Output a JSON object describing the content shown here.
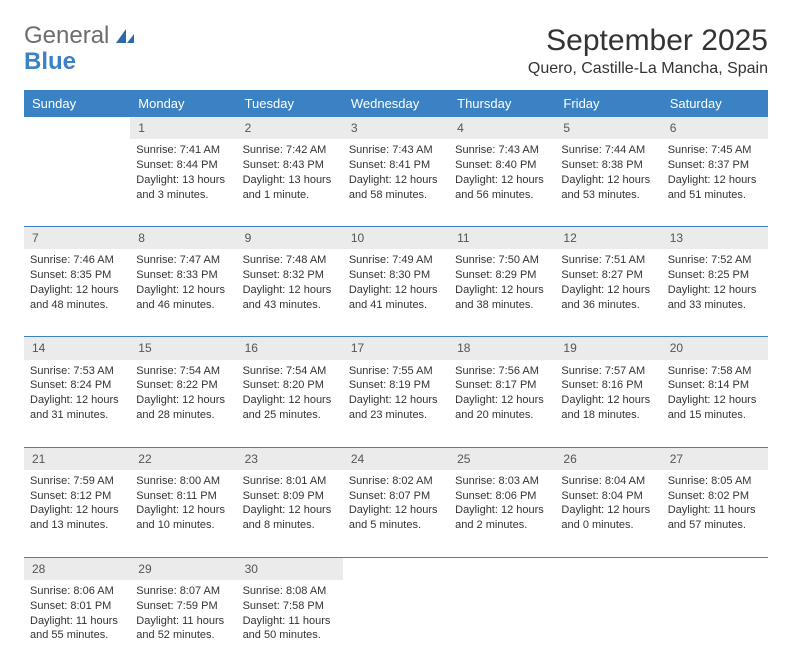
{
  "brand": {
    "general": "General",
    "blue": "Blue"
  },
  "header": {
    "month_title": "September 2025",
    "location": "Quero, Castille-La Mancha, Spain"
  },
  "style": {
    "header_bg": "#3b82c4",
    "header_fg": "#ffffff",
    "daynum_bg": "#ebebeb",
    "daynum_fg": "#555555",
    "cell_border": "#3b82c4",
    "body_bg": "#ffffff",
    "text_color": "#333333",
    "font_family": "Arial, Helvetica, sans-serif",
    "title_fontsize_pt": 22,
    "location_fontsize_pt": 12,
    "weekday_fontsize_pt": 10,
    "cell_fontsize_pt": 8
  },
  "weekdays": [
    "Sunday",
    "Monday",
    "Tuesday",
    "Wednesday",
    "Thursday",
    "Friday",
    "Saturday"
  ],
  "weeks": [
    {
      "nums": [
        "",
        "1",
        "2",
        "3",
        "4",
        "5",
        "6"
      ],
      "cells": [
        null,
        {
          "sun": "Sunrise: 7:41 AM",
          "set": "Sunset: 8:44 PM",
          "d1": "Daylight: 13 hours",
          "d2": "and 3 minutes."
        },
        {
          "sun": "Sunrise: 7:42 AM",
          "set": "Sunset: 8:43 PM",
          "d1": "Daylight: 13 hours",
          "d2": "and 1 minute."
        },
        {
          "sun": "Sunrise: 7:43 AM",
          "set": "Sunset: 8:41 PM",
          "d1": "Daylight: 12 hours",
          "d2": "and 58 minutes."
        },
        {
          "sun": "Sunrise: 7:43 AM",
          "set": "Sunset: 8:40 PM",
          "d1": "Daylight: 12 hours",
          "d2": "and 56 minutes."
        },
        {
          "sun": "Sunrise: 7:44 AM",
          "set": "Sunset: 8:38 PM",
          "d1": "Daylight: 12 hours",
          "d2": "and 53 minutes."
        },
        {
          "sun": "Sunrise: 7:45 AM",
          "set": "Sunset: 8:37 PM",
          "d1": "Daylight: 12 hours",
          "d2": "and 51 minutes."
        }
      ]
    },
    {
      "nums": [
        "7",
        "8",
        "9",
        "10",
        "11",
        "12",
        "13"
      ],
      "cells": [
        {
          "sun": "Sunrise: 7:46 AM",
          "set": "Sunset: 8:35 PM",
          "d1": "Daylight: 12 hours",
          "d2": "and 48 minutes."
        },
        {
          "sun": "Sunrise: 7:47 AM",
          "set": "Sunset: 8:33 PM",
          "d1": "Daylight: 12 hours",
          "d2": "and 46 minutes."
        },
        {
          "sun": "Sunrise: 7:48 AM",
          "set": "Sunset: 8:32 PM",
          "d1": "Daylight: 12 hours",
          "d2": "and 43 minutes."
        },
        {
          "sun": "Sunrise: 7:49 AM",
          "set": "Sunset: 8:30 PM",
          "d1": "Daylight: 12 hours",
          "d2": "and 41 minutes."
        },
        {
          "sun": "Sunrise: 7:50 AM",
          "set": "Sunset: 8:29 PM",
          "d1": "Daylight: 12 hours",
          "d2": "and 38 minutes."
        },
        {
          "sun": "Sunrise: 7:51 AM",
          "set": "Sunset: 8:27 PM",
          "d1": "Daylight: 12 hours",
          "d2": "and 36 minutes."
        },
        {
          "sun": "Sunrise: 7:52 AM",
          "set": "Sunset: 8:25 PM",
          "d1": "Daylight: 12 hours",
          "d2": "and 33 minutes."
        }
      ]
    },
    {
      "nums": [
        "14",
        "15",
        "16",
        "17",
        "18",
        "19",
        "20"
      ],
      "cells": [
        {
          "sun": "Sunrise: 7:53 AM",
          "set": "Sunset: 8:24 PM",
          "d1": "Daylight: 12 hours",
          "d2": "and 31 minutes."
        },
        {
          "sun": "Sunrise: 7:54 AM",
          "set": "Sunset: 8:22 PM",
          "d1": "Daylight: 12 hours",
          "d2": "and 28 minutes."
        },
        {
          "sun": "Sunrise: 7:54 AM",
          "set": "Sunset: 8:20 PM",
          "d1": "Daylight: 12 hours",
          "d2": "and 25 minutes."
        },
        {
          "sun": "Sunrise: 7:55 AM",
          "set": "Sunset: 8:19 PM",
          "d1": "Daylight: 12 hours",
          "d2": "and 23 minutes."
        },
        {
          "sun": "Sunrise: 7:56 AM",
          "set": "Sunset: 8:17 PM",
          "d1": "Daylight: 12 hours",
          "d2": "and 20 minutes."
        },
        {
          "sun": "Sunrise: 7:57 AM",
          "set": "Sunset: 8:16 PM",
          "d1": "Daylight: 12 hours",
          "d2": "and 18 minutes."
        },
        {
          "sun": "Sunrise: 7:58 AM",
          "set": "Sunset: 8:14 PM",
          "d1": "Daylight: 12 hours",
          "d2": "and 15 minutes."
        }
      ]
    },
    {
      "nums": [
        "21",
        "22",
        "23",
        "24",
        "25",
        "26",
        "27"
      ],
      "cells": [
        {
          "sun": "Sunrise: 7:59 AM",
          "set": "Sunset: 8:12 PM",
          "d1": "Daylight: 12 hours",
          "d2": "and 13 minutes."
        },
        {
          "sun": "Sunrise: 8:00 AM",
          "set": "Sunset: 8:11 PM",
          "d1": "Daylight: 12 hours",
          "d2": "and 10 minutes."
        },
        {
          "sun": "Sunrise: 8:01 AM",
          "set": "Sunset: 8:09 PM",
          "d1": "Daylight: 12 hours",
          "d2": "and 8 minutes."
        },
        {
          "sun": "Sunrise: 8:02 AM",
          "set": "Sunset: 8:07 PM",
          "d1": "Daylight: 12 hours",
          "d2": "and 5 minutes."
        },
        {
          "sun": "Sunrise: 8:03 AM",
          "set": "Sunset: 8:06 PM",
          "d1": "Daylight: 12 hours",
          "d2": "and 2 minutes."
        },
        {
          "sun": "Sunrise: 8:04 AM",
          "set": "Sunset: 8:04 PM",
          "d1": "Daylight: 12 hours",
          "d2": "and 0 minutes."
        },
        {
          "sun": "Sunrise: 8:05 AM",
          "set": "Sunset: 8:02 PM",
          "d1": "Daylight: 11 hours",
          "d2": "and 57 minutes."
        }
      ]
    },
    {
      "nums": [
        "28",
        "29",
        "30",
        "",
        "",
        "",
        ""
      ],
      "cells": [
        {
          "sun": "Sunrise: 8:06 AM",
          "set": "Sunset: 8:01 PM",
          "d1": "Daylight: 11 hours",
          "d2": "and 55 minutes."
        },
        {
          "sun": "Sunrise: 8:07 AM",
          "set": "Sunset: 7:59 PM",
          "d1": "Daylight: 11 hours",
          "d2": "and 52 minutes."
        },
        {
          "sun": "Sunrise: 8:08 AM",
          "set": "Sunset: 7:58 PM",
          "d1": "Daylight: 11 hours",
          "d2": "and 50 minutes."
        },
        null,
        null,
        null,
        null
      ]
    }
  ]
}
